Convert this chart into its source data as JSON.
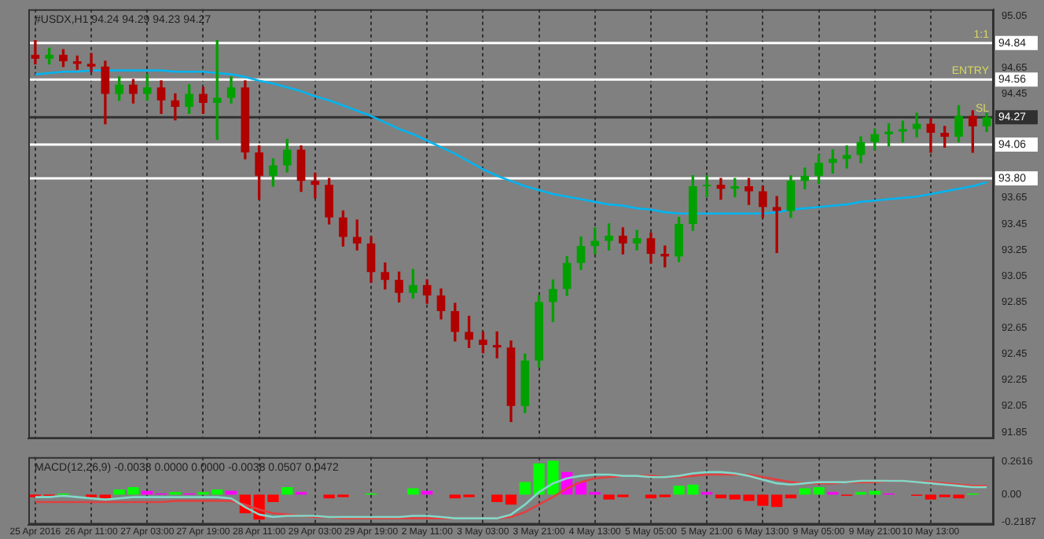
{
  "chart_data": [
    {
      "type": "candlestick",
      "title": "#USDX,H1 94.24 94.29 94.23 94.27",
      "ohlc": [
        [
          94.75,
          94.86,
          94.68,
          94.72
        ],
        [
          94.72,
          94.8,
          94.68,
          94.75
        ],
        [
          94.75,
          94.79,
          94.66,
          94.7
        ],
        [
          94.7,
          94.74,
          94.64,
          94.68
        ],
        [
          94.68,
          94.76,
          94.62,
          94.66
        ],
        [
          94.66,
          94.7,
          94.22,
          94.45
        ],
        [
          94.45,
          94.58,
          94.4,
          94.52
        ],
        [
          94.52,
          94.56,
          94.38,
          94.45
        ],
        [
          94.45,
          94.6,
          94.4,
          94.5
        ],
        [
          94.5,
          94.55,
          94.3,
          94.4
        ],
        [
          94.4,
          94.45,
          94.25,
          94.35
        ],
        [
          94.35,
          94.52,
          94.3,
          94.45
        ],
        [
          94.45,
          94.5,
          94.3,
          94.38
        ],
        [
          94.38,
          94.86,
          94.1,
          94.42
        ],
        [
          94.42,
          94.58,
          94.38,
          94.5
        ],
        [
          94.5,
          94.55,
          93.95,
          94.0
        ],
        [
          94.0,
          94.05,
          93.64,
          93.82
        ],
        [
          93.82,
          93.95,
          93.74,
          93.9
        ],
        [
          93.9,
          94.1,
          93.85,
          94.02
        ],
        [
          94.02,
          94.05,
          93.7,
          93.78
        ],
        [
          93.78,
          93.84,
          93.65,
          93.75
        ],
        [
          93.75,
          93.8,
          93.45,
          93.5
        ],
        [
          93.5,
          93.55,
          93.28,
          93.35
        ],
        [
          93.35,
          93.48,
          93.25,
          93.3
        ],
        [
          93.3,
          93.35,
          93.0,
          93.08
        ],
        [
          93.08,
          93.15,
          92.95,
          93.02
        ],
        [
          93.02,
          93.08,
          92.85,
          92.92
        ],
        [
          92.92,
          93.1,
          92.88,
          92.98
        ],
        [
          92.98,
          93.02,
          92.84,
          92.9
        ],
        [
          92.9,
          92.95,
          92.72,
          92.78
        ],
        [
          92.78,
          92.84,
          92.55,
          92.62
        ],
        [
          92.62,
          92.74,
          92.5,
          92.56
        ],
        [
          92.56,
          92.62,
          92.46,
          92.52
        ],
        [
          92.52,
          92.62,
          92.42,
          92.5
        ],
        [
          92.5,
          92.55,
          91.93,
          92.05
        ],
        [
          92.05,
          92.45,
          92.0,
          92.4
        ],
        [
          92.4,
          92.9,
          92.35,
          92.85
        ],
        [
          92.85,
          93.02,
          92.7,
          92.95
        ],
        [
          92.95,
          93.2,
          92.9,
          93.15
        ],
        [
          93.15,
          93.35,
          93.1,
          93.28
        ],
        [
          93.28,
          93.42,
          93.22,
          93.32
        ],
        [
          93.32,
          93.45,
          93.25,
          93.36
        ],
        [
          93.36,
          93.42,
          93.22,
          93.3
        ],
        [
          93.3,
          93.4,
          93.25,
          93.34
        ],
        [
          93.34,
          93.38,
          93.15,
          93.22
        ],
        [
          93.22,
          93.28,
          93.12,
          93.2
        ],
        [
          93.2,
          93.5,
          93.16,
          93.45
        ],
        [
          93.45,
          93.82,
          93.4,
          93.74
        ],
        [
          93.74,
          93.82,
          93.66,
          93.75
        ],
        [
          93.75,
          93.8,
          93.64,
          93.72
        ],
        [
          93.72,
          93.8,
          93.66,
          93.74
        ],
        [
          93.74,
          93.8,
          93.6,
          93.7
        ],
        [
          93.7,
          93.74,
          93.5,
          93.58
        ],
        [
          93.58,
          93.66,
          93.23,
          93.55
        ],
        [
          93.55,
          93.82,
          93.5,
          93.78
        ],
        [
          93.78,
          93.88,
          93.72,
          93.82
        ],
        [
          93.82,
          93.98,
          93.76,
          93.92
        ],
        [
          93.92,
          94.02,
          93.84,
          93.95
        ],
        [
          93.95,
          94.05,
          93.88,
          93.98
        ],
        [
          93.98,
          94.12,
          93.92,
          94.08
        ],
        [
          94.08,
          94.18,
          94.02,
          94.14
        ],
        [
          94.14,
          94.22,
          94.05,
          94.16
        ],
        [
          94.16,
          94.24,
          94.08,
          94.18
        ],
        [
          94.18,
          94.3,
          94.12,
          94.22
        ],
        [
          94.22,
          94.26,
          94.0,
          94.15
        ],
        [
          94.15,
          94.2,
          94.04,
          94.12
        ],
        [
          94.12,
          94.36,
          94.08,
          94.28
        ],
        [
          94.28,
          94.32,
          94.0,
          94.2
        ],
        [
          94.2,
          94.3,
          94.16,
          94.27
        ]
      ],
      "colors": [
        "#b00000",
        "#00a000",
        "#b00000",
        "#b00000",
        "#b00000",
        "#b00000",
        "#00a000",
        "#b00000",
        "#00a000",
        "#b00000",
        "#b00000",
        "#00a000",
        "#b00000",
        "#00a000",
        "#00a000",
        "#b00000",
        "#b00000",
        "#00a000",
        "#00a000",
        "#b00000",
        "#b00000",
        "#b00000",
        "#b00000",
        "#b00000",
        "#b00000",
        "#b00000",
        "#b00000",
        "#00a000",
        "#b00000",
        "#b00000",
        "#b00000",
        "#b00000",
        "#b00000",
        "#b00000",
        "#b00000",
        "#00a000",
        "#00a000",
        "#00a000",
        "#00a000",
        "#00a000",
        "#00a000",
        "#00a000",
        "#b00000",
        "#00a000",
        "#b00000",
        "#b00000",
        "#00a000",
        "#00a000",
        "#00a000",
        "#b00000",
        "#00a000",
        "#b00000",
        "#b00000",
        "#b00000",
        "#00a000",
        "#00a000",
        "#00a000",
        "#00a000",
        "#00a000",
        "#00a000",
        "#00a000",
        "#00a000",
        "#00a000",
        "#00a000",
        "#b00000",
        "#b00000",
        "#00a000",
        "#b00000",
        "#00a000"
      ],
      "series": [
        {
          "type": "line",
          "color": "#00b4f0",
          "values": [
            94.6,
            94.61,
            94.62,
            94.62,
            94.63,
            94.63,
            94.63,
            94.63,
            94.63,
            94.63,
            94.62,
            94.62,
            94.62,
            94.61,
            94.6,
            94.58,
            94.55,
            94.53,
            94.5,
            94.47,
            94.43,
            94.4,
            94.36,
            94.32,
            94.28,
            94.23,
            94.18,
            94.14,
            94.09,
            94.04,
            93.99,
            93.93,
            93.87,
            93.82,
            93.78,
            93.74,
            93.71,
            93.68,
            93.66,
            93.64,
            93.62,
            93.6,
            93.59,
            93.57,
            93.56,
            93.54,
            93.53,
            93.53,
            93.53,
            93.53,
            93.53,
            93.53,
            93.53,
            93.54,
            93.56,
            93.57,
            93.58,
            93.59,
            93.6,
            93.62,
            93.63,
            93.64,
            93.65,
            93.66,
            93.68,
            93.7,
            93.72,
            93.74,
            93.77
          ]
        }
      ],
      "ylim": [
        91.8,
        95.1
      ],
      "yticks": [
        91.85,
        92.05,
        92.25,
        92.45,
        92.65,
        92.85,
        93.05,
        93.25,
        93.45,
        93.65,
        94.45,
        94.65,
        95.05
      ],
      "ref_lines": [
        {
          "axis": "y",
          "value": 94.84,
          "label": "94.84",
          "color": "#ffffff"
        },
        {
          "axis": "y",
          "value": 94.56,
          "label": "94.56",
          "color": "#ffffff"
        },
        {
          "axis": "y",
          "value": 94.27,
          "label": "94.27",
          "color": "#303030"
        },
        {
          "axis": "y",
          "value": 94.06,
          "label": "94.06",
          "color": "#ffffff"
        },
        {
          "axis": "y",
          "value": 93.8,
          "label": "93.80",
          "color": "#ffffff"
        }
      ],
      "annotations": [
        {
          "text": "1:1",
          "y": 94.84
        },
        {
          "text": "ENTRY",
          "y": 94.56
        },
        {
          "text": "SL",
          "y": 94.27
        }
      ],
      "grid": "x",
      "tick_labels": "y",
      "marker": "none",
      "legend": false
    },
    {
      "type": "bar",
      "title": "MACD(12,26,9) -0.0038 0.0000 0.0000 -0.0038 0.0507 0.0472",
      "categories": [
        "25 Apr 2016",
        null,
        null,
        null,
        "26 Apr 11:00",
        null,
        null,
        null,
        "27 Apr 03:00",
        null,
        null,
        null,
        "27 Apr 19:00",
        null,
        null,
        null,
        "28 Apr 11:00",
        null,
        null,
        null,
        "29 Apr 03:00",
        null,
        null,
        null,
        "29 Apr 19:00",
        null,
        null,
        null,
        "2 May 11:00",
        null,
        null,
        null,
        "3 May 03:00",
        null,
        null,
        null,
        "3 May 21:00",
        null,
        null,
        null,
        "4 May 13:00",
        null,
        null,
        null,
        "5 May 05:00",
        null,
        null,
        null,
        "5 May 21:00",
        null,
        null,
        null,
        "6 May 13:00",
        null,
        null,
        null,
        "9 May 05:00",
        null,
        null,
        null,
        "9 May 21:00",
        null,
        null,
        null,
        "10 May 13:00",
        null,
        null,
        null,
        null
      ],
      "series": [
        {
          "type": "bar",
          "values": [
            -0.02,
            -0.01,
            0.01,
            0,
            -0.02,
            -0.03,
            0.04,
            0.06,
            0.03,
            0.01,
            0.02,
            0.01,
            0.02,
            0.04,
            0.03,
            -0.15,
            -0.2,
            -0.06,
            0.06,
            0.02,
            0,
            -0.03,
            -0.02,
            0,
            0.01,
            0,
            0,
            0.05,
            0.03,
            0,
            -0.03,
            -0.02,
            0,
            -0.06,
            -0.08,
            0.1,
            0.25,
            0.27,
            0.18,
            0.1,
            0.02,
            -0.04,
            -0.02,
            0,
            -0.03,
            -0.02,
            0.07,
            0.08,
            0.02,
            -0.03,
            -0.04,
            -0.05,
            -0.09,
            -0.1,
            -0.03,
            0.05,
            0.06,
            0.02,
            -0.01,
            0.02,
            0.03,
            0.01,
            0,
            -0.01,
            -0.04,
            -0.02,
            -0.03,
            0.01,
            0
          ],
          "colors": [
            "#ff0000",
            "#ff0000",
            "#00ff00",
            "#ff0000",
            "#ff0000",
            "#ff0000",
            "#00ff00",
            "#00ff00",
            "#ff00ff",
            "#ff00ff",
            "#00ff00",
            "#ff00ff",
            "#00ff00",
            "#00ff00",
            "#ff00ff",
            "#ff0000",
            "#ff0000",
            "#ff0000",
            "#00ff00",
            "#ff00ff",
            "#ff0000",
            "#ff0000",
            "#ff0000",
            "#ff0000",
            "#00ff00",
            "#ff0000",
            "#ff0000",
            "#00ff00",
            "#ff00ff",
            "#ff0000",
            "#ff0000",
            "#ff0000",
            "#ff0000",
            "#ff0000",
            "#ff0000",
            "#00ff00",
            "#00ff00",
            "#00ff00",
            "#ff00ff",
            "#ff00ff",
            "#ff00ff",
            "#ff0000",
            "#ff0000",
            "#ff0000",
            "#ff0000",
            "#ff0000",
            "#00ff00",
            "#00ff00",
            "#ff00ff",
            "#ff0000",
            "#ff0000",
            "#ff0000",
            "#ff0000",
            "#ff0000",
            "#ff0000",
            "#00ff00",
            "#00ff00",
            "#ff00ff",
            "#ff0000",
            "#00ff00",
            "#00ff00",
            "#ff00ff",
            "#ff0000",
            "#ff0000",
            "#ff0000",
            "#ff0000",
            "#ff0000",
            "#00ff00",
            "#ff0000"
          ]
        },
        {
          "type": "line",
          "color": "#80d8c8",
          "values": [
            -0.02,
            -0.02,
            -0.01,
            -0.02,
            -0.03,
            -0.04,
            -0.03,
            -0.02,
            -0.02,
            -0.02,
            -0.02,
            -0.02,
            -0.02,
            -0.02,
            -0.03,
            -0.1,
            -0.16,
            -0.18,
            -0.17,
            -0.17,
            -0.17,
            -0.18,
            -0.18,
            -0.18,
            -0.18,
            -0.18,
            -0.18,
            -0.17,
            -0.17,
            -0.18,
            -0.19,
            -0.19,
            -0.19,
            -0.19,
            -0.16,
            -0.08,
            0.02,
            0.09,
            0.13,
            0.15,
            0.16,
            0.16,
            0.15,
            0.15,
            0.14,
            0.14,
            0.15,
            0.17,
            0.18,
            0.18,
            0.17,
            0.15,
            0.12,
            0.09,
            0.08,
            0.09,
            0.1,
            0.1,
            0.1,
            0.11,
            0.11,
            0.11,
            0.11,
            0.1,
            0.09,
            0.08,
            0.07,
            0.06,
            0.06
          ]
        },
        {
          "type": "line",
          "color": "#e04040",
          "values": [
            -0.06,
            -0.06,
            -0.06,
            -0.06,
            -0.06,
            -0.06,
            -0.06,
            -0.06,
            -0.06,
            -0.06,
            -0.05,
            -0.05,
            -0.05,
            -0.05,
            -0.05,
            -0.08,
            -0.12,
            -0.15,
            -0.16,
            -0.17,
            -0.18,
            -0.18,
            -0.19,
            -0.19,
            -0.19,
            -0.19,
            -0.19,
            -0.19,
            -0.19,
            -0.19,
            -0.19,
            -0.19,
            -0.19,
            -0.19,
            -0.18,
            -0.14,
            -0.08,
            -0.02,
            0.05,
            0.1,
            0.13,
            0.14,
            0.15,
            0.15,
            0.15,
            0.14,
            0.14,
            0.15,
            0.16,
            0.16,
            0.16,
            0.16,
            0.14,
            0.12,
            0.1,
            0.09,
            0.09,
            0.09,
            0.1,
            0.1,
            0.1,
            0.11,
            0.11,
            0.1,
            0.1,
            0.09,
            0.08,
            0.07,
            0.07
          ]
        }
      ],
      "ylim": [
        -0.24,
        0.3
      ],
      "yticks": [
        0.2616,
        {
          "value": 0,
          "label": "0.00"
        },
        -0.2187
      ],
      "grid": "x",
      "marker": "none",
      "legend": false
    }
  ]
}
